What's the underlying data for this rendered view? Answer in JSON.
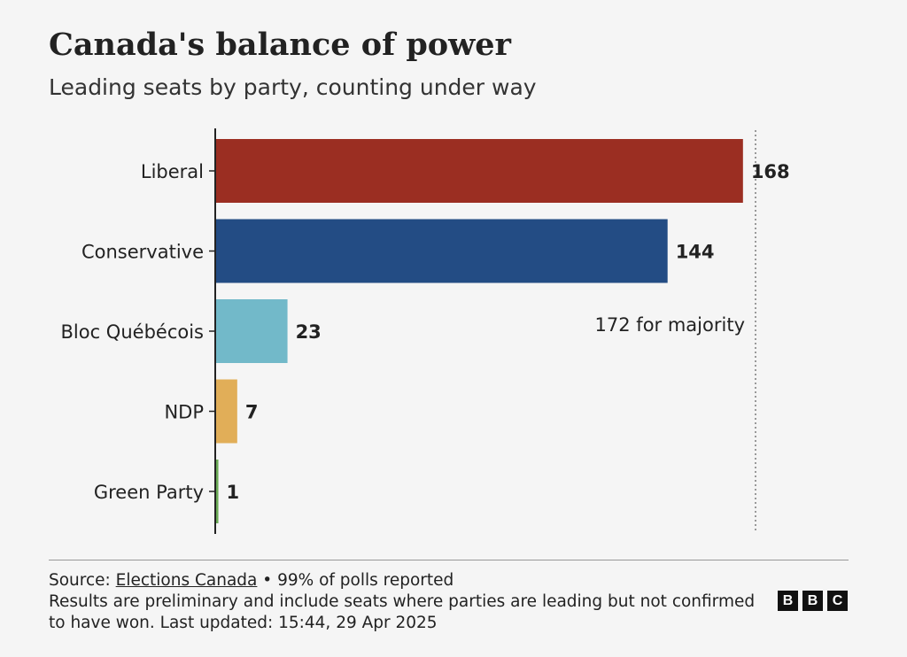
{
  "header": {
    "title": "Canada's balance of power",
    "subtitle": "Leading seats by party, counting under way"
  },
  "chart_data": {
    "type": "bar",
    "orientation": "horizontal",
    "title": "Canada's balance of power",
    "subtitle": "Leading seats by party, counting under way",
    "categories": [
      "Liberal",
      "Conservative",
      "Bloc Québécois",
      "NDP",
      "Green Party"
    ],
    "values": [
      168,
      144,
      23,
      7,
      1
    ],
    "colors": [
      "#9b2e22",
      "#234c84",
      "#72b9c9",
      "#e1ae58",
      "#6aaa55"
    ],
    "xlim": [
      0,
      172
    ],
    "xlabel": "",
    "ylabel": "",
    "grid": false,
    "reference_line": {
      "value": 172,
      "label": "172 for majority"
    }
  },
  "footer": {
    "source_prefix": "Source: ",
    "source_link": "Elections Canada",
    "source_suffix": " • 99% of polls reported",
    "note": "Results are preliminary and include seats where parties are leading but not confirmed to have won. Last updated: 15:44, 29 Apr 2025"
  },
  "logo": {
    "letters": [
      "B",
      "B",
      "C"
    ]
  }
}
